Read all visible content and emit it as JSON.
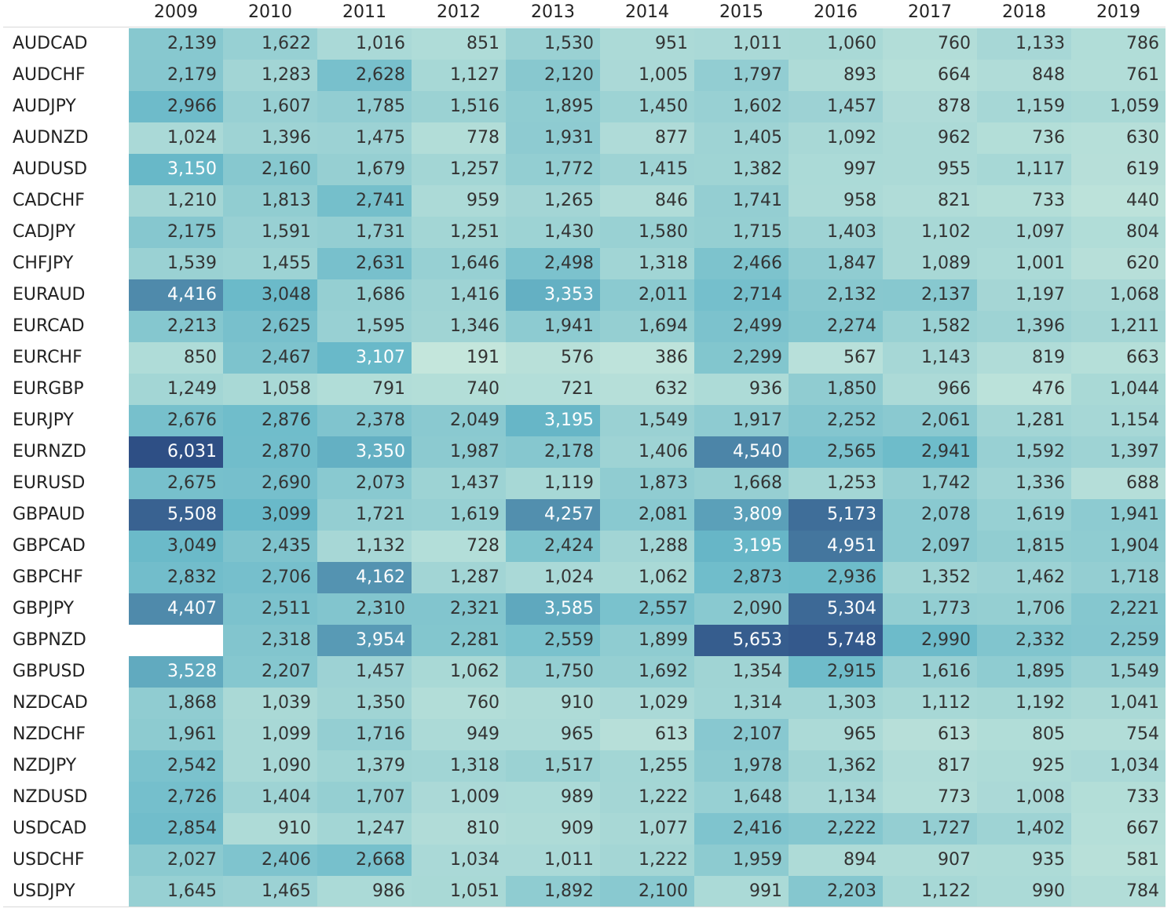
{
  "chart_data": {
    "type": "heatmap",
    "title": "",
    "xlabel": "",
    "ylabel": "",
    "x": [
      "2009",
      "2010",
      "2011",
      "2012",
      "2013",
      "2014",
      "2015",
      "2016",
      "2017",
      "2018",
      "2019"
    ],
    "y": [
      "AUDCAD",
      "AUDCHF",
      "AUDJPY",
      "AUDNZD",
      "AUDUSD",
      "CADCHF",
      "CADJPY",
      "CHFJPY",
      "EURAUD",
      "EURCAD",
      "EURCHF",
      "EURGBP",
      "EURJPY",
      "EURNZD",
      "EURUSD",
      "GBPAUD",
      "GBPCAD",
      "GBPCHF",
      "GBPJPY",
      "GBPNZD",
      "GBPUSD",
      "NZDCAD",
      "NZDCHF",
      "NZDJPY",
      "NZDUSD",
      "USDCAD",
      "USDCHF",
      "USDJPY"
    ],
    "values": [
      [
        2139,
        1622,
        1016,
        851,
        1530,
        951,
        1011,
        1060,
        760,
        1133,
        786
      ],
      [
        2179,
        1283,
        2628,
        1127,
        2120,
        1005,
        1797,
        893,
        664,
        848,
        761
      ],
      [
        2966,
        1607,
        1785,
        1516,
        1895,
        1450,
        1602,
        1457,
        878,
        1159,
        1059
      ],
      [
        1024,
        1396,
        1475,
        778,
        1931,
        877,
        1405,
        1092,
        962,
        736,
        630
      ],
      [
        3150,
        2160,
        1679,
        1257,
        1772,
        1415,
        1382,
        997,
        955,
        1117,
        619
      ],
      [
        1210,
        1813,
        2741,
        959,
        1265,
        846,
        1741,
        958,
        821,
        733,
        440
      ],
      [
        2175,
        1591,
        1731,
        1251,
        1430,
        1580,
        1715,
        1403,
        1102,
        1097,
        804
      ],
      [
        1539,
        1455,
        2631,
        1646,
        2498,
        1318,
        2466,
        1847,
        1089,
        1001,
        620
      ],
      [
        4416,
        3048,
        1686,
        1416,
        3353,
        2011,
        2714,
        2132,
        2137,
        1197,
        1068
      ],
      [
        2213,
        2625,
        1595,
        1346,
        1941,
        1694,
        2499,
        2274,
        1582,
        1396,
        1211
      ],
      [
        850,
        2467,
        3107,
        191,
        576,
        386,
        2299,
        567,
        1143,
        819,
        663
      ],
      [
        1249,
        1058,
        791,
        740,
        721,
        632,
        936,
        1850,
        966,
        476,
        1044
      ],
      [
        2676,
        2876,
        2378,
        2049,
        3195,
        1549,
        1917,
        2252,
        2061,
        1281,
        1154
      ],
      [
        6031,
        2870,
        3350,
        1987,
        2178,
        1406,
        4540,
        2565,
        2941,
        1592,
        1397
      ],
      [
        2675,
        2690,
        2073,
        1437,
        1119,
        1873,
        1668,
        1253,
        1742,
        1336,
        688
      ],
      [
        5508,
        3099,
        1721,
        1619,
        4257,
        2081,
        3809,
        5173,
        2078,
        1619,
        1941
      ],
      [
        3049,
        2435,
        1132,
        728,
        2424,
        1288,
        3195,
        4951,
        2097,
        1815,
        1904
      ],
      [
        2832,
        2706,
        4162,
        1287,
        1024,
        1062,
        2873,
        2936,
        1352,
        1462,
        1718
      ],
      [
        4407,
        2511,
        2310,
        2321,
        3585,
        2557,
        2090,
        5304,
        1773,
        1706,
        2221
      ],
      [
        null,
        2318,
        3954,
        2281,
        2559,
        1899,
        5653,
        5748,
        2990,
        2332,
        2259
      ],
      [
        3528,
        2207,
        1457,
        1062,
        1750,
        1692,
        1354,
        2915,
        1616,
        1895,
        1549
      ],
      [
        1868,
        1039,
        1350,
        760,
        910,
        1029,
        1314,
        1303,
        1112,
        1192,
        1041
      ],
      [
        1961,
        1099,
        1716,
        949,
        965,
        613,
        2107,
        965,
        613,
        805,
        754
      ],
      [
        2542,
        1090,
        1379,
        1318,
        1517,
        1255,
        1978,
        1362,
        817,
        925,
        1034
      ],
      [
        2726,
        1404,
        1707,
        1009,
        989,
        1222,
        1648,
        1134,
        773,
        1008,
        733
      ],
      [
        2854,
        910,
        1247,
        810,
        909,
        1077,
        2416,
        2222,
        1727,
        1402,
        667
      ],
      [
        2027,
        2406,
        2668,
        1034,
        1011,
        1222,
        1959,
        894,
        907,
        935,
        581
      ],
      [
        1645,
        1465,
        986,
        1051,
        1892,
        2100,
        991,
        2203,
        1122,
        990,
        784
      ]
    ],
    "value_range": [
      191,
      6031
    ],
    "colors": {
      "low": "#c4e6dc",
      "mid": "#69b9c9",
      "high": "#2e4f85",
      "text_dark": "#333333",
      "text_light": "#ffffff"
    },
    "grid": false,
    "legend": "none"
  }
}
